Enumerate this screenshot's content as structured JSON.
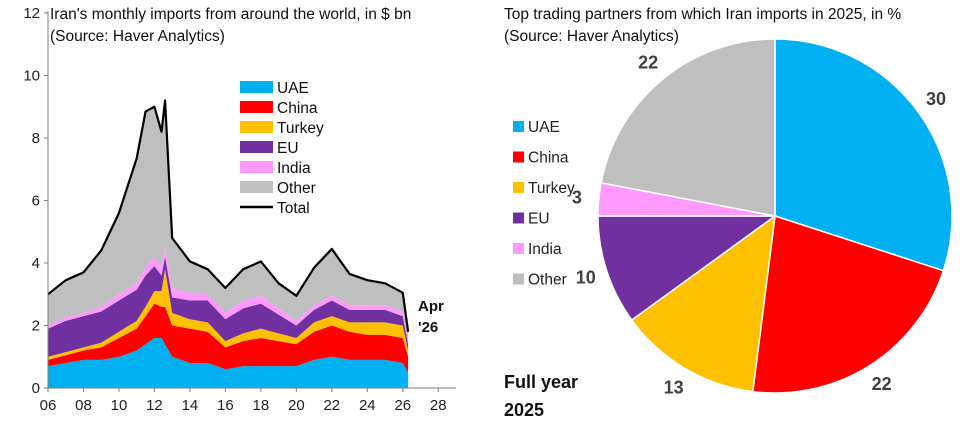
{
  "chart_data": [
    {
      "type": "area",
      "title": "Iran's  monthly imports from around the world, in $ bn",
      "subtitle": "(Source: Haver Analytics)",
      "stacked": true,
      "x_start": "2006-01",
      "x_end": "2026-04",
      "xlim": [
        6,
        29
      ],
      "ylim": [
        0,
        12
      ],
      "x_ticks": [
        "06",
        "08",
        "10",
        "12",
        "14",
        "16",
        "18",
        "20",
        "22",
        "24",
        "26",
        "28"
      ],
      "y_ticks": [
        "0",
        "2",
        "4",
        "6",
        "8",
        "10",
        "12"
      ],
      "grid": false,
      "legend": "upper-center",
      "annotation": [
        "Apr",
        "'26"
      ],
      "colors": {
        "UAE": "#00B0F0",
        "China": "#FF0000",
        "Turkey": "#FFC000",
        "EU": "#7030A0",
        "India": "#FF99FF",
        "Other": "#BFBFBF",
        "Total": "#000000"
      },
      "series": [
        {
          "name": "UAE",
          "x": [
            6.0,
            7.0,
            8.0,
            9.0,
            10.0,
            11.0,
            11.5,
            12.0,
            12.4,
            12.6,
            13.0,
            14.0,
            15.0,
            16.0,
            17.0,
            18.0,
            19.0,
            20.0,
            21.0,
            22.0,
            23.0,
            24.0,
            25.0,
            26.0,
            26.3
          ],
          "y": [
            0.7,
            0.8,
            0.9,
            0.9,
            1.0,
            1.2,
            1.4,
            1.6,
            1.6,
            1.4,
            1.0,
            0.8,
            0.8,
            0.6,
            0.7,
            0.7,
            0.7,
            0.7,
            0.9,
            1.0,
            0.9,
            0.9,
            0.9,
            0.8,
            0.5
          ]
        },
        {
          "name": "China",
          "x": [
            6.0,
            7.0,
            8.0,
            9.0,
            10.0,
            11.0,
            11.5,
            12.0,
            12.4,
            12.6,
            13.0,
            14.0,
            15.0,
            16.0,
            17.0,
            18.0,
            19.0,
            20.0,
            21.0,
            22.0,
            23.0,
            24.0,
            25.0,
            26.0,
            26.3
          ],
          "y": [
            0.2,
            0.25,
            0.3,
            0.4,
            0.6,
            0.7,
            0.9,
            1.1,
            1.0,
            1.2,
            1.0,
            1.1,
            1.0,
            0.7,
            0.8,
            0.9,
            0.8,
            0.7,
            0.9,
            1.0,
            0.9,
            0.8,
            0.8,
            0.8,
            0.5
          ]
        },
        {
          "name": "Turkey",
          "x": [
            6.0,
            7.0,
            8.0,
            9.0,
            10.0,
            11.0,
            11.5,
            12.0,
            12.4,
            12.6,
            13.0,
            14.0,
            15.0,
            16.0,
            17.0,
            18.0,
            19.0,
            20.0,
            21.0,
            22.0,
            23.0,
            24.0,
            25.0,
            26.0,
            26.3
          ],
          "y": [
            0.1,
            0.1,
            0.1,
            0.15,
            0.2,
            0.25,
            0.3,
            0.4,
            0.5,
            1.2,
            0.4,
            0.3,
            0.3,
            0.2,
            0.25,
            0.3,
            0.25,
            0.2,
            0.3,
            0.3,
            0.3,
            0.4,
            0.4,
            0.4,
            0.2
          ]
        },
        {
          "name": "EU",
          "x": [
            6.0,
            7.0,
            8.0,
            9.0,
            10.0,
            11.0,
            11.5,
            12.0,
            12.4,
            12.6,
            13.0,
            14.0,
            15.0,
            16.0,
            17.0,
            18.0,
            19.0,
            20.0,
            21.0,
            22.0,
            23.0,
            24.0,
            25.0,
            26.0,
            26.3
          ],
          "y": [
            0.9,
            1.0,
            1.0,
            1.0,
            1.0,
            1.0,
            1.0,
            0.8,
            0.5,
            0.4,
            0.5,
            0.6,
            0.7,
            0.7,
            0.8,
            0.8,
            0.6,
            0.4,
            0.4,
            0.5,
            0.4,
            0.4,
            0.4,
            0.3,
            0.2
          ]
        },
        {
          "name": "India",
          "x": [
            6.0,
            7.0,
            8.0,
            9.0,
            10.0,
            11.0,
            11.5,
            12.0,
            12.4,
            12.6,
            13.0,
            14.0,
            15.0,
            16.0,
            17.0,
            18.0,
            19.0,
            20.0,
            21.0,
            22.0,
            23.0,
            24.0,
            25.0,
            26.0,
            26.3
          ],
          "y": [
            0.1,
            0.1,
            0.1,
            0.15,
            0.2,
            0.2,
            0.25,
            0.3,
            0.3,
            0.3,
            0.3,
            0.25,
            0.2,
            0.2,
            0.25,
            0.25,
            0.2,
            0.15,
            0.15,
            0.15,
            0.15,
            0.15,
            0.15,
            0.15,
            0.1
          ]
        },
        {
          "name": "Other",
          "x": [
            6.0,
            7.0,
            8.0,
            9.0,
            10.0,
            11.0,
            11.5,
            12.0,
            12.4,
            12.6,
            13.0,
            14.0,
            15.0,
            16.0,
            17.0,
            18.0,
            19.0,
            20.0,
            21.0,
            22.0,
            23.0,
            24.0,
            25.0,
            26.0,
            26.3
          ],
          "y": [
            1.0,
            1.2,
            1.3,
            1.8,
            2.6,
            4.0,
            5.0,
            4.8,
            4.3,
            4.7,
            1.6,
            1.0,
            0.8,
            0.8,
            1.0,
            1.1,
            0.8,
            0.8,
            1.2,
            1.5,
            1.0,
            0.8,
            0.7,
            0.6,
            0.3
          ]
        },
        {
          "name": "Total",
          "x": [
            6.0,
            7.0,
            8.0,
            9.0,
            10.0,
            11.0,
            11.5,
            12.0,
            12.4,
            12.6,
            13.0,
            14.0,
            15.0,
            16.0,
            17.0,
            18.0,
            19.0,
            20.0,
            21.0,
            22.0,
            23.0,
            24.0,
            25.0,
            26.0,
            26.3
          ],
          "y": [
            3.0,
            3.45,
            3.7,
            4.4,
            5.6,
            7.35,
            8.85,
            9.0,
            8.2,
            9.2,
            4.8,
            4.05,
            3.8,
            3.2,
            3.8,
            4.05,
            3.35,
            2.95,
            3.85,
            4.45,
            3.65,
            3.45,
            3.35,
            3.05,
            1.8
          ]
        }
      ]
    },
    {
      "type": "pie",
      "title": "Top trading partners from which Iran imports in 2025, in %",
      "subtitle": "(Source: Haver Analytics)",
      "categories": [
        "UAE",
        "China",
        "Turkey",
        "EU",
        "India",
        "Other"
      ],
      "values": [
        30,
        22,
        13,
        10,
        3,
        22
      ],
      "value_labels": [
        "30",
        "22",
        "13",
        "10",
        "3",
        "22"
      ],
      "colors": [
        "#00B0F0",
        "#FF0000",
        "#FFC000",
        "#7030A0",
        "#FF99FF",
        "#BFBFBF"
      ],
      "legend": "left",
      "annotation": [
        "Full year",
        "2025"
      ]
    }
  ]
}
